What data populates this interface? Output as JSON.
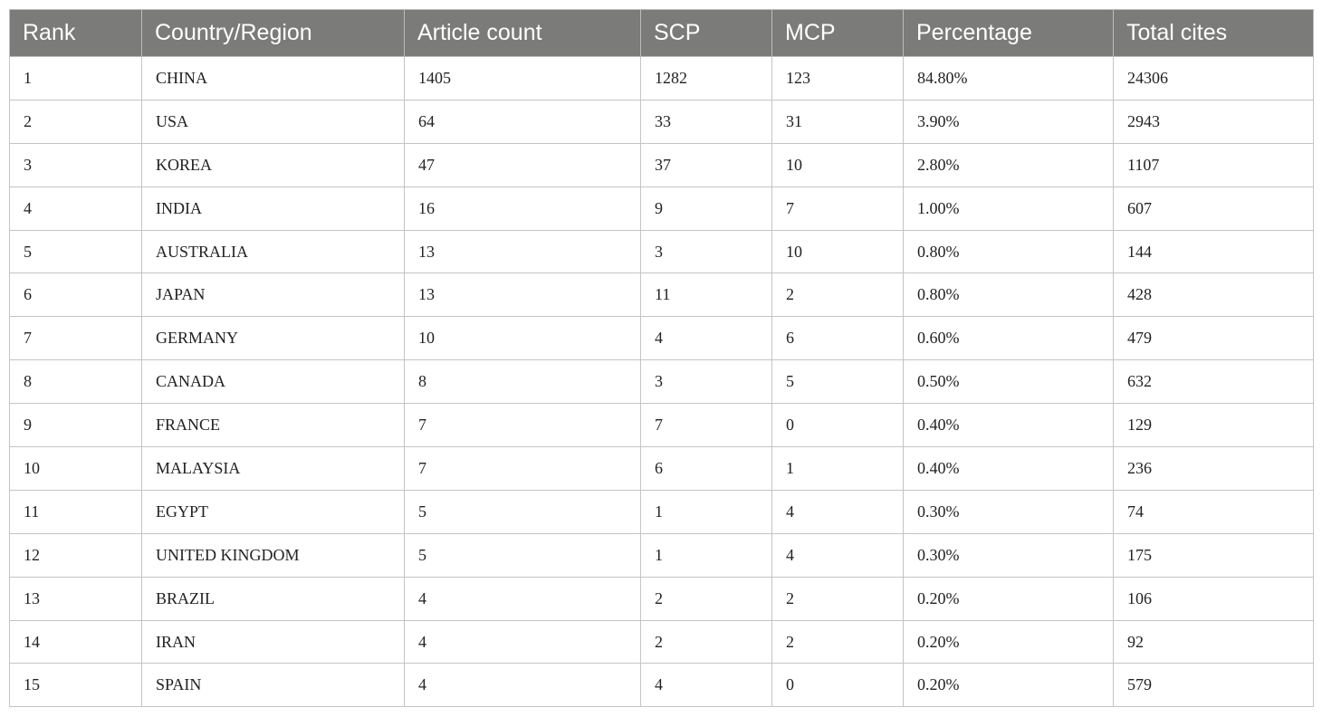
{
  "table": {
    "headers": [
      "Rank",
      "Country/Region",
      "Article count",
      "SCP",
      "MCP",
      "Percentage",
      "Total cites"
    ],
    "rows": [
      [
        "1",
        "CHINA",
        "1405",
        "1282",
        "123",
        "84.80%",
        "24306"
      ],
      [
        "2",
        "USA",
        "64",
        "33",
        "31",
        "3.90%",
        "2943"
      ],
      [
        "3",
        "KOREA",
        "47",
        "37",
        "10",
        "2.80%",
        "1107"
      ],
      [
        "4",
        "INDIA",
        "16",
        "9",
        "7",
        "1.00%",
        "607"
      ],
      [
        "5",
        "AUSTRALIA",
        "13",
        "3",
        "10",
        "0.80%",
        "144"
      ],
      [
        "6",
        "JAPAN",
        "13",
        "11",
        "2",
        "0.80%",
        "428"
      ],
      [
        "7",
        "GERMANY",
        "10",
        "4",
        "6",
        "0.60%",
        "479"
      ],
      [
        "8",
        "CANADA",
        "8",
        "3",
        "5",
        "0.50%",
        "632"
      ],
      [
        "9",
        "FRANCE",
        "7",
        "7",
        "0",
        "0.40%",
        "129"
      ],
      [
        "10",
        "MALAYSIA",
        "7",
        "6",
        "1",
        "0.40%",
        "236"
      ],
      [
        "11",
        "EGYPT",
        "5",
        "1",
        "4",
        "0.30%",
        "74"
      ],
      [
        "12",
        "UNITED KINGDOM",
        "5",
        "1",
        "4",
        "0.30%",
        "175"
      ],
      [
        "13",
        "BRAZIL",
        "4",
        "2",
        "2",
        "0.20%",
        "106"
      ],
      [
        "14",
        "IRAN",
        "4",
        "2",
        "2",
        "0.20%",
        "92"
      ],
      [
        "15",
        "SPAIN",
        "4",
        "4",
        "0",
        "0.20%",
        "579"
      ]
    ]
  },
  "colors": {
    "header_bg": "#7b7b7a",
    "header_text": "#ffffff",
    "border": "#c4c4c4"
  }
}
